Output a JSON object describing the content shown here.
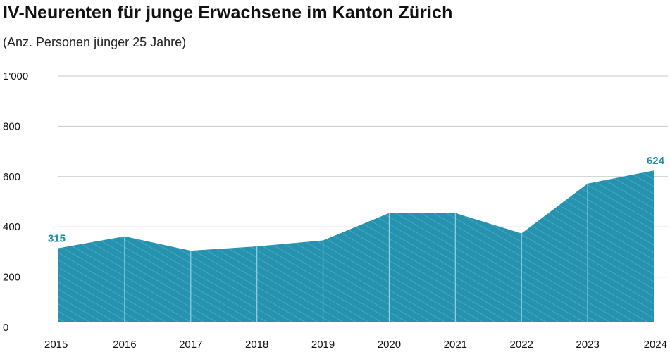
{
  "title": "IV-Neurenten für junge Erwachsene im Kanton Zürich",
  "subtitle": "(Anz. Personen jünger 25 Jahre)",
  "colors": {
    "area": "#2593b0",
    "highlight_label": "#1f8ea7",
    "grid": "#c9c9c9",
    "vline": "#8fd3e3"
  },
  "chart_data": {
    "type": "area",
    "title": "IV-Neurenten für junge Erwachsene im Kanton Zürich",
    "subtitle": "(Anz. Personen jünger 25 Jahre)",
    "xlabel": "",
    "ylabel": "",
    "ylim": [
      0,
      1000
    ],
    "y_ticks": [
      0,
      200,
      400,
      600,
      800,
      1000
    ],
    "y_tick_labels": [
      "0",
      "200",
      "400",
      "600",
      "800",
      "1'000"
    ],
    "grid": true,
    "x": [
      "2015",
      "2016",
      "2017",
      "2018",
      "2019",
      "2020",
      "2021",
      "2022",
      "2023",
      "2024"
    ],
    "series": [
      {
        "values": [
          315,
          362,
          305,
          322,
          346,
          455,
          455,
          374,
          572,
          624
        ]
      }
    ],
    "data_labels": [
      {
        "index": 0,
        "text": "315"
      },
      {
        "index": 9,
        "text": "624"
      }
    ]
  }
}
